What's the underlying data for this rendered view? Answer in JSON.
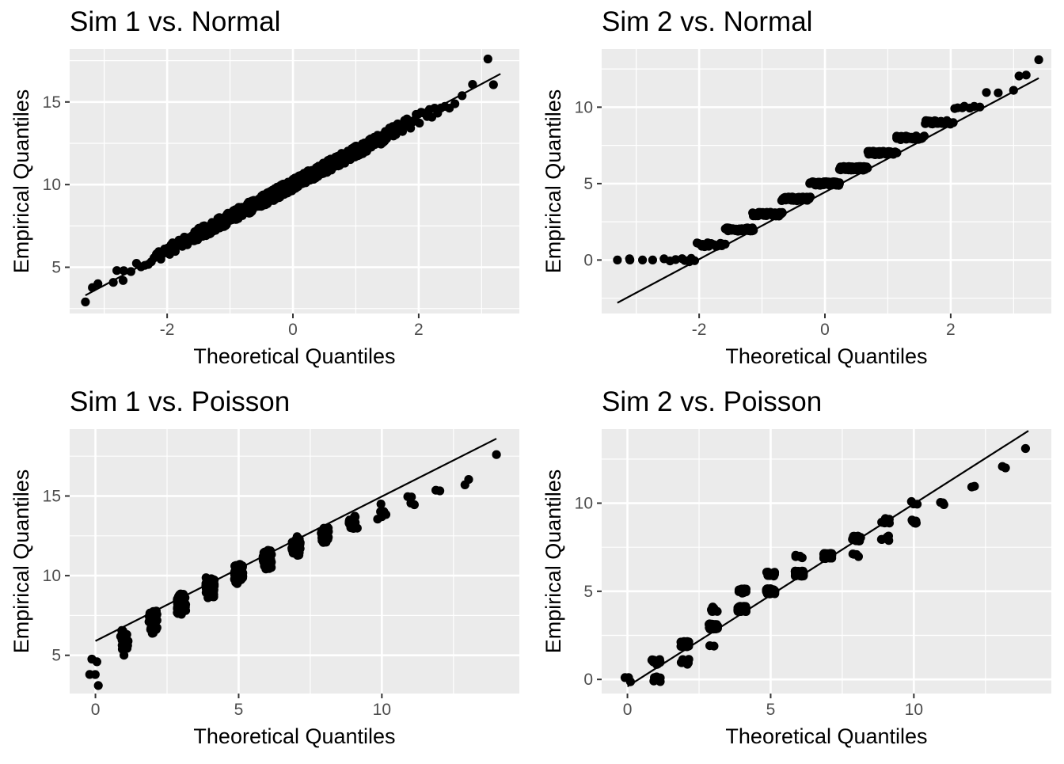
{
  "panels": [
    {
      "title": "Sim 1 vs. Normal",
      "xlabel": "Theoretical Quantiles",
      "ylabel": "Empirical Quantiles",
      "type": "scatter",
      "xlim": [
        -3.55,
        3.6
      ],
      "ylim": [
        2.2,
        18.2
      ],
      "xticks": [
        -2,
        0,
        2
      ],
      "yticks": [
        5,
        10,
        15
      ],
      "dist": "normal",
      "n": 700,
      "mean": 10,
      "sd": 2,
      "line": {
        "x": [
          -3.3,
          3.3
        ],
        "y": [
          3.3,
          16.7
        ]
      },
      "points": [
        [
          -3.3,
          2.9
        ],
        [
          -3.1,
          4.0
        ],
        [
          3.1,
          17.6
        ],
        [
          -2.8,
          4.8
        ],
        [
          -2.7,
          4.2
        ]
      ]
    },
    {
      "title": "Sim 2 vs. Normal",
      "xlabel": "Theoretical Quantiles",
      "ylabel": "Empirical Quantiles",
      "type": "scatter",
      "xlim": [
        -3.55,
        3.6
      ],
      "ylim": [
        -3.5,
        13.8
      ],
      "xticks": [
        -2,
        0,
        2
      ],
      "yticks": [
        0,
        5,
        10
      ],
      "dist": "normal-discrete",
      "n": 500,
      "mean": 5,
      "sd": 2.2,
      "line": {
        "x": [
          -3.3,
          3.4
        ],
        "y": [
          -2.8,
          11.9
        ]
      },
      "points": [
        [
          -3.3,
          0
        ],
        [
          -3.1,
          0
        ],
        [
          -2.9,
          0
        ],
        [
          3.0,
          11.1
        ],
        [
          3.2,
          12.1
        ],
        [
          3.4,
          13.1
        ]
      ]
    },
    {
      "title": "Sim 1 vs. Poisson",
      "xlabel": "Theoretical Quantiles",
      "ylabel": "Empirical Quantiles",
      "type": "scatter",
      "xlim": [
        -0.9,
        14.8
      ],
      "ylim": [
        2.6,
        19.2
      ],
      "xticks": [
        0,
        5,
        10
      ],
      "yticks": [
        5,
        10,
        15
      ],
      "dist": "poisson-x",
      "n": 500,
      "mean": 10,
      "sd": 2,
      "line": {
        "x": [
          0,
          14
        ],
        "y": [
          5.9,
          18.6
        ]
      },
      "points": [
        [
          -0.2,
          3.8
        ],
        [
          0.1,
          3.1
        ],
        [
          12.9,
          15.7
        ],
        [
          14.0,
          17.6
        ]
      ]
    },
    {
      "title": "Sim 2 vs. Poisson",
      "xlabel": "Theoretical Quantiles",
      "ylabel": "Empirical Quantiles",
      "type": "scatter",
      "xlim": [
        -0.9,
        14.8
      ],
      "ylim": [
        -0.8,
        14.2
      ],
      "xticks": [
        0,
        5,
        10
      ],
      "yticks": [
        0,
        5,
        10
      ],
      "dist": "poisson-xy",
      "n": 500,
      "mean": 5,
      "sd": 2.2,
      "line": {
        "x": [
          0,
          14
        ],
        "y": [
          -0.4,
          14.1
        ]
      },
      "points": [
        [
          13.2,
          12.0
        ],
        [
          13.9,
          13.1
        ],
        [
          7.9,
          7.1
        ]
      ]
    }
  ]
}
